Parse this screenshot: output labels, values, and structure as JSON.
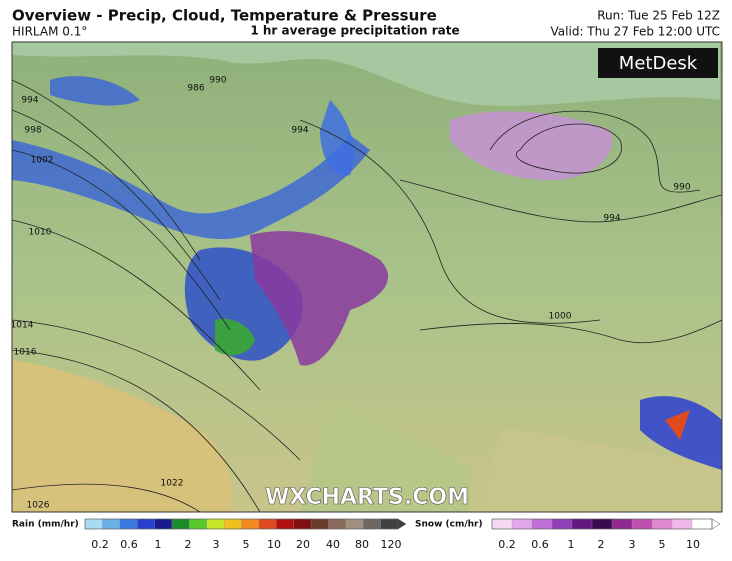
{
  "header": {
    "title": "Overview - Precip, Cloud, Temperature & Pressure",
    "model": "HIRLAM 0.1°",
    "subtitle": "1 hr average precipitation rate",
    "run": "Run: Tue 25 Feb 12Z",
    "valid": "Valid: Thu 27 Feb 12:00 UTC"
  },
  "map": {
    "logo": "MetDesk",
    "watermark": "WXCHARTS.COM",
    "isobar_labels": [
      "994",
      "998",
      "1002",
      "1010",
      "1014",
      "1016",
      "1022",
      "1026",
      "986",
      "990",
      "994",
      "990",
      "994",
      "1000"
    ]
  },
  "legend": {
    "rain": {
      "title": "Rain (mm/hr)",
      "labels": [
        "0.2",
        "0.6",
        "1",
        "2",
        "3",
        "5",
        "10",
        "20",
        "40",
        "80",
        "120"
      ],
      "colors": [
        "#a8dcef",
        "#6ab0e8",
        "#3a78e0",
        "#2a3fd0",
        "#1a1a90",
        "#1a8a2a",
        "#5ac82a",
        "#c8e62a",
        "#f0c020",
        "#f08a20",
        "#e04a20",
        "#b01010",
        "#801010",
        "#6a3a2a",
        "#8a6a5a",
        "#a09080",
        "#706860",
        "#404040"
      ]
    },
    "snow": {
      "title": "Snow (cm/hr)",
      "labels": [
        "0.2",
        "0.6",
        "1",
        "2",
        "3",
        "5",
        "10"
      ],
      "colors": [
        "#f4d8f4",
        "#e0a8e8",
        "#c070d8",
        "#9040b8",
        "#601880",
        "#3a0a50",
        "#902a90",
        "#c050b0",
        "#e088d0",
        "#f0b8e8",
        "#fff"
      ]
    }
  }
}
